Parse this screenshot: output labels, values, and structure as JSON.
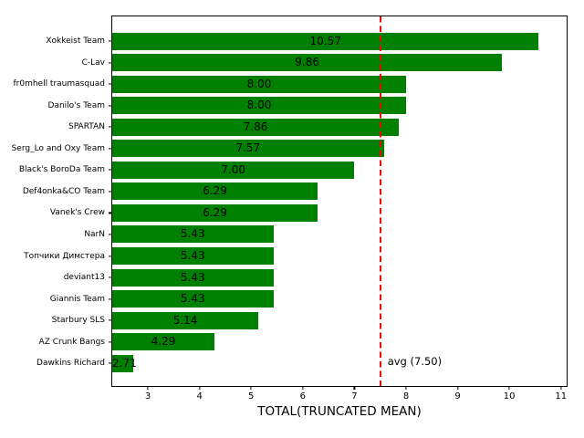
{
  "figure": {
    "background": "#ffffff",
    "axis_color": "#000000"
  },
  "chart_data": {
    "type": "bar",
    "orientation": "horizontal",
    "title": "",
    "xlabel": "TOTAL(TRUNCATED MEAN)",
    "ylabel": "",
    "categories": [
      "Xokkeist Team",
      "C-Lav",
      "fr0mhell traumasquad",
      "Danilo's Team",
      "SPARTAN",
      "Serg_Lo and Oxy Team",
      "Black's BoroDa Team",
      "Def4onka&CO Team",
      "Vanek's Crew",
      "NarN",
      "Топчики Димстера",
      "deviant13",
      "Giannis Team",
      "Starbury SLS",
      "AZ Crunk Bangs",
      "Dawkins Richard"
    ],
    "values": [
      10.57,
      9.86,
      8.0,
      8.0,
      7.86,
      7.57,
      7.0,
      6.29,
      6.29,
      5.43,
      5.43,
      5.43,
      5.43,
      5.14,
      4.29,
      2.71
    ],
    "value_labels": [
      "10.57",
      "9.86",
      "8.00",
      "8.00",
      "7.86",
      "7.57",
      "7.00",
      "6.29",
      "6.29",
      "5.43",
      "5.43",
      "5.43",
      "5.43",
      "5.14",
      "4.29",
      "2.71"
    ],
    "bar_color": "#008000",
    "value_label_color": "#000000",
    "xticks": [
      "3",
      "4",
      "5",
      "6",
      "7",
      "8",
      "9",
      "10",
      "11"
    ],
    "xtick_values": [
      3,
      4,
      5,
      6,
      7,
      8,
      9,
      10,
      11
    ],
    "xlim": [
      2.31,
      11.11
    ],
    "grid": false,
    "legend": false,
    "avg_line": {
      "value": 7.5,
      "label": "avg (7.50)",
      "color": "#ff0000",
      "style": "dashed"
    }
  }
}
